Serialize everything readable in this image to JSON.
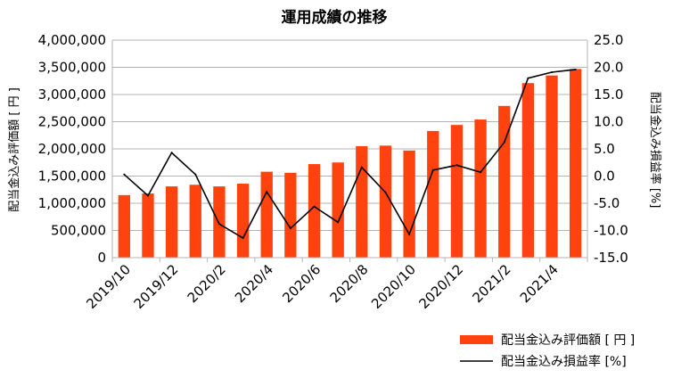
{
  "chart_data": {
    "type": "bar+line",
    "title": "運用成績の推移",
    "categories": [
      "2019/10",
      "2019/11",
      "2019/12",
      "2020/1",
      "2020/2",
      "2020/3",
      "2020/4",
      "2020/5",
      "2020/6",
      "2020/7",
      "2020/8",
      "2020/9",
      "2020/10",
      "2020/11",
      "2020/12",
      "2021/1",
      "2021/2",
      "2021/3",
      "2021/4",
      "2021/5"
    ],
    "x_tick_labels": [
      "2019/10",
      "2019/12",
      "2020/2",
      "2020/4",
      "2020/6",
      "2020/8",
      "2020/10",
      "2020/12",
      "2021/2",
      "2021/4"
    ],
    "series": [
      {
        "name": "配当金込み評価額 [ 円 ]",
        "type": "bar",
        "axis": "left",
        "color": "#ff420e",
        "values": [
          1150000,
          1180000,
          1310000,
          1340000,
          1310000,
          1360000,
          1580000,
          1560000,
          1720000,
          1750000,
          2050000,
          2060000,
          1970000,
          2330000,
          2440000,
          2540000,
          2790000,
          3210000,
          3350000,
          3470000
        ]
      },
      {
        "name": "配当金込み損益率 [%]",
        "type": "line",
        "axis": "right",
        "color": "#000000",
        "values": [
          0.3,
          -3.6,
          4.3,
          0.3,
          -8.8,
          -11.4,
          -2.9,
          -9.6,
          -5.6,
          -8.5,
          1.6,
          -3.0,
          -10.7,
          1.1,
          2.0,
          0.7,
          6.2,
          18.0,
          19.1,
          19.6
        ]
      }
    ],
    "y_left": {
      "label": "配当金込み評価額 [ 円 ]",
      "min": 0,
      "max": 4000000,
      "step": 500000,
      "tick_labels": [
        "0",
        "500,000",
        "1,000,000",
        "1,500,000",
        "2,000,000",
        "2,500,000",
        "3,000,000",
        "3,500,000",
        "4,000,000"
      ]
    },
    "y_right": {
      "label": "配当金込み損益率 [%]",
      "min": -15,
      "max": 25,
      "step": 5,
      "tick_labels": [
        "-15.0",
        "-10.0",
        "-5.0",
        "0.0",
        "5.0",
        "10.0",
        "15.0",
        "20.0",
        "25.0"
      ]
    },
    "grid": true,
    "legend": "bottom-right"
  }
}
